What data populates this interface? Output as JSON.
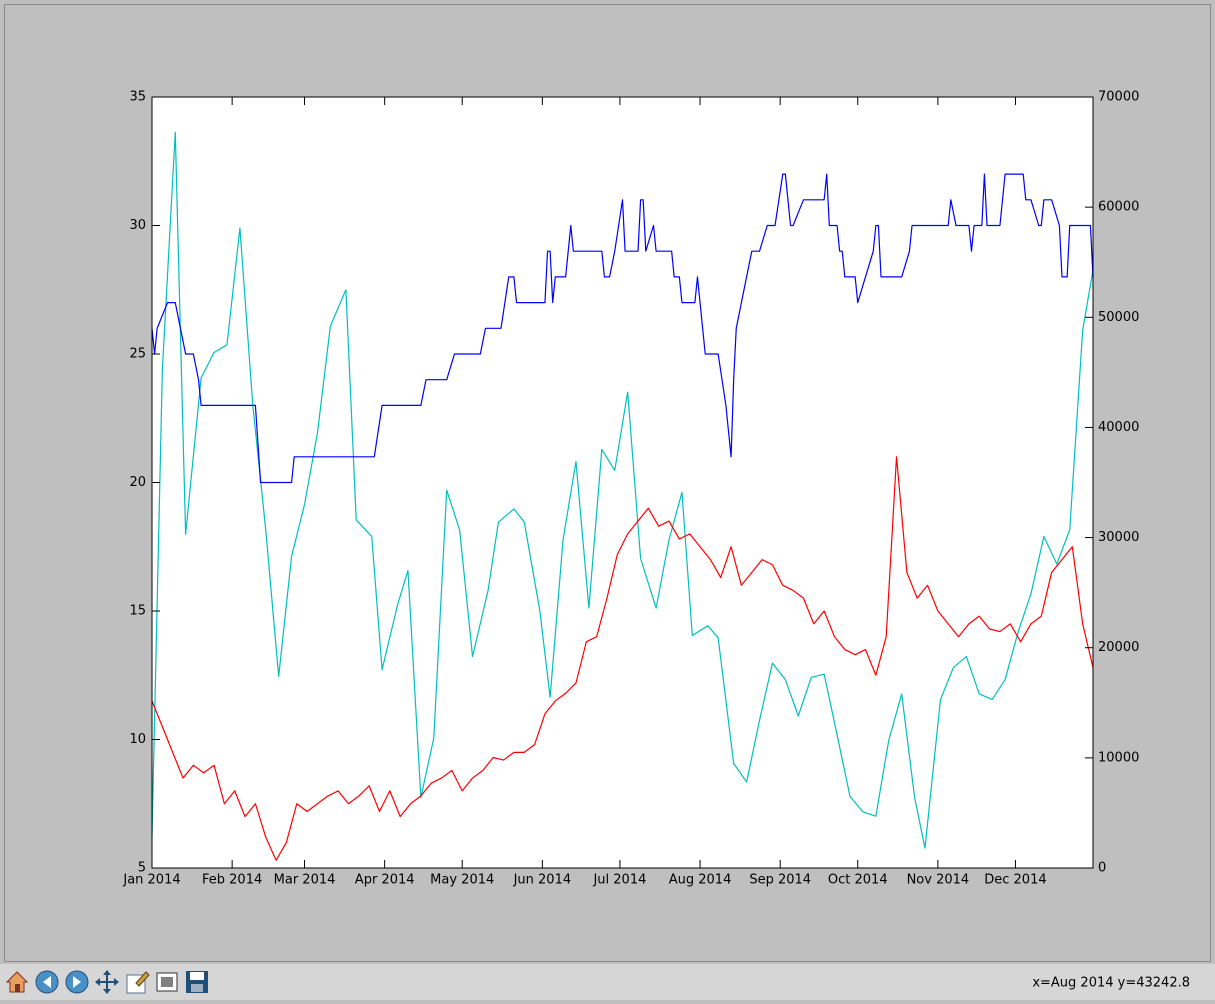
{
  "chart_data": {
    "type": "line",
    "xlim": [
      0,
      364
    ],
    "xticks": [
      {
        "value": 0,
        "label": "Jan 2014"
      },
      {
        "value": 31,
        "label": "Feb 2014"
      },
      {
        "value": 59,
        "label": "Mar 2014"
      },
      {
        "value": 90,
        "label": "Apr 2014"
      },
      {
        "value": 120,
        "label": "May 2014"
      },
      {
        "value": 151,
        "label": "Jun 2014"
      },
      {
        "value": 181,
        "label": "Jul 2014"
      },
      {
        "value": 212,
        "label": "Aug 2014"
      },
      {
        "value": 243,
        "label": "Sep 2014"
      },
      {
        "value": 273,
        "label": "Oct 2014"
      },
      {
        "value": 304,
        "label": "Nov 2014"
      },
      {
        "value": 334,
        "label": "Dec 2014"
      }
    ],
    "ylim": [
      5,
      35
    ],
    "yticks": [
      5,
      10,
      15,
      20,
      25,
      30,
      35
    ],
    "y2lim": [
      0,
      70000
    ],
    "y2ticks": [
      0,
      10000,
      20000,
      30000,
      40000,
      50000,
      60000,
      70000
    ],
    "series": [
      {
        "color": "#00bfbf",
        "axis": "y2",
        "x": [
          0,
          4,
          9,
          13,
          19,
          24,
          29,
          34,
          39,
          44,
          49,
          54,
          59,
          64,
          69,
          75,
          79,
          85,
          89,
          95,
          99,
          104,
          109,
          114,
          119,
          124,
          130,
          134,
          140,
          144,
          150,
          154,
          159,
          164,
          169,
          174,
          179,
          184,
          189,
          195,
          200,
          205,
          209,
          215,
          219,
          225,
          230,
          235,
          240,
          245,
          250,
          255,
          260,
          265,
          270,
          275,
          280,
          285,
          290,
          295,
          299,
          305,
          310,
          315,
          320,
          325,
          330,
          335,
          340,
          345,
          350,
          355,
          360,
          364
        ],
        "values": [
          3000,
          45200,
          66800,
          30300,
          44500,
          46800,
          47500,
          58100,
          42000,
          30700,
          17400,
          28300,
          33000,
          39500,
          49200,
          52500,
          31600,
          30100,
          18000,
          23900,
          27000,
          6400,
          11800,
          34300,
          30700,
          19200,
          25200,
          31400,
          32600,
          31400,
          23400,
          15500,
          29800,
          36900,
          23600,
          38000,
          36100,
          43200,
          28100,
          23600,
          29800,
          34100,
          21100,
          22000,
          20900,
          9500,
          7800,
          13400,
          18600,
          17100,
          13800,
          17300,
          17600,
          12100,
          6500,
          5100,
          4700,
          11600,
          15800,
          6400,
          1800,
          15300,
          18200,
          19200,
          15800,
          15300,
          17100,
          21400,
          24900,
          30100,
          27600,
          30700,
          48800,
          54300
        ]
      },
      {
        "color": "#0000ff",
        "x": [
          0,
          1,
          2,
          6,
          9,
          13,
          16,
          18,
          19,
          40,
          42,
          54,
          55,
          86,
          89,
          104,
          106,
          114,
          117,
          127,
          129,
          135,
          138,
          140,
          141,
          152,
          153,
          154,
          155,
          156,
          160,
          162,
          163,
          174,
          175,
          177,
          179,
          182,
          183,
          188,
          189,
          190,
          191,
          194,
          195,
          201,
          202,
          204,
          205,
          210,
          211,
          214,
          219,
          222,
          224,
          225,
          226,
          232,
          235,
          238,
          241,
          244,
          245,
          247,
          248,
          252,
          260,
          261,
          262,
          265,
          266,
          267,
          268,
          272,
          273,
          279,
          280,
          281,
          282,
          290,
          293,
          294,
          308,
          309,
          311,
          316,
          317,
          318,
          321,
          322,
          323,
          328,
          330,
          337,
          338,
          340,
          343,
          344,
          345,
          348,
          351,
          352,
          354,
          355,
          363,
          364
        ],
        "values": [
          26,
          25,
          26,
          27,
          27,
          25,
          25,
          24,
          23,
          23,
          20,
          20,
          21,
          21,
          23,
          23,
          24,
          24,
          25,
          25,
          26,
          26,
          28,
          28,
          27,
          27,
          29,
          29,
          27,
          28,
          28,
          30,
          29,
          29,
          28,
          28,
          29,
          31,
          29,
          29,
          31,
          31,
          29,
          30,
          29,
          29,
          28,
          28,
          27,
          27,
          28,
          25,
          25,
          23,
          21,
          24,
          26,
          29,
          29,
          30,
          30,
          32,
          32,
          30,
          30,
          31,
          31,
          32,
          30,
          30,
          29,
          29,
          28,
          28,
          27,
          29,
          30,
          30,
          28,
          28,
          29,
          30,
          30,
          31,
          30,
          30,
          29,
          30,
          30,
          32,
          30,
          30,
          32,
          32,
          31,
          31,
          30,
          30,
          31,
          31,
          30,
          28,
          28,
          30,
          30,
          28
        ]
      },
      {
        "color": "#ff0000",
        "x": [
          0,
          4,
          8,
          12,
          16,
          20,
          24,
          28,
          32,
          36,
          40,
          44,
          48,
          52,
          56,
          60,
          64,
          68,
          72,
          76,
          80,
          84,
          88,
          92,
          96,
          100,
          104,
          108,
          112,
          116,
          120,
          124,
          128,
          132,
          136,
          140,
          144,
          148,
          152,
          156,
          160,
          164,
          168,
          172,
          176,
          180,
          184,
          188,
          192,
          196,
          200,
          204,
          208,
          212,
          216,
          220,
          224,
          228,
          232,
          236,
          240,
          244,
          248,
          252,
          256,
          260,
          264,
          268,
          272,
          276,
          280,
          284,
          288,
          292,
          296,
          300,
          304,
          308,
          312,
          316,
          320,
          324,
          328,
          332,
          336,
          340,
          344,
          348,
          352,
          356,
          360,
          364
        ],
        "values": [
          11.5,
          10.5,
          9.5,
          8.5,
          9,
          8.7,
          9,
          7.5,
          8,
          7,
          7.5,
          6.2,
          5.3,
          6,
          7.5,
          7.2,
          7.5,
          7.8,
          8,
          7.5,
          7.8,
          8.2,
          7.2,
          8,
          7,
          7.5,
          7.8,
          8.3,
          8.5,
          8.8,
          8,
          8.5,
          8.8,
          9.3,
          9.2,
          9.5,
          9.5,
          9.8,
          11,
          11.5,
          11.8,
          12.2,
          13.8,
          14,
          15.5,
          17.2,
          18,
          18.5,
          19,
          18.3,
          18.5,
          17.8,
          18,
          17.5,
          17,
          16.3,
          17.5,
          16,
          16.5,
          17,
          16.8,
          16,
          15.8,
          15.5,
          14.5,
          15,
          14,
          13.5,
          13.3,
          13.5,
          12.5,
          14,
          21,
          16.5,
          15.5,
          16,
          15,
          14.5,
          14,
          14.5,
          14.8,
          14.3,
          14.2,
          14.5,
          13.8,
          14.5,
          14.8,
          16.5,
          17,
          17.5,
          14.5,
          12.8
        ]
      }
    ]
  },
  "status": "x=Aug 2014 y=43242.8"
}
